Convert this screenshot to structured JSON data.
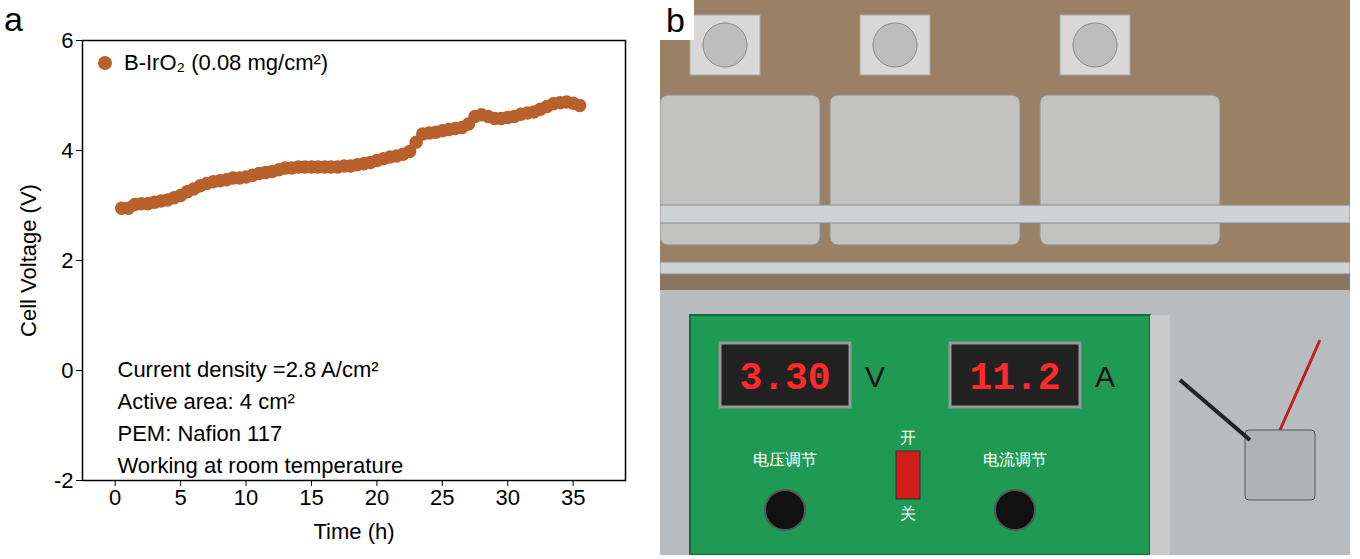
{
  "chart_data": {
    "type": "scatter",
    "panel": "a",
    "x_label": "Time (h)",
    "y_label": "Cell Voltage (V)",
    "annotations": [
      "Current density =2.8 A/cm²",
      "Active area: 4 cm²",
      "PEM: Nafion 117",
      "Working at room temperature"
    ],
    "x": [
      0.5,
      1,
      1.5,
      2,
      2.5,
      3,
      3.5,
      4,
      4.5,
      5,
      5.5,
      6,
      6.5,
      7,
      7.5,
      8,
      8.5,
      9,
      9.5,
      10,
      10.5,
      11,
      11.5,
      12,
      12.5,
      13,
      13.5,
      14,
      14.5,
      15,
      15.5,
      16,
      16.5,
      17,
      17.5,
      18,
      18.5,
      19,
      19.5,
      20,
      20.5,
      21,
      21.5,
      22,
      22.5,
      23,
      23.5,
      24,
      24.5,
      25,
      25.5,
      26,
      26.5,
      27,
      27.5,
      28,
      28.5,
      29,
      29.5,
      30,
      30.5,
      31,
      31.5,
      32,
      32.5,
      33,
      33.5,
      34,
      34.5,
      35,
      35.5
    ],
    "series": [
      {
        "name": "B-IrO₂ (0.08 mg/cm²)",
        "color": "#b8612c",
        "marker": "circle",
        "values": [
          2.95,
          2.95,
          3.02,
          3.03,
          3.03,
          3.06,
          3.08,
          3.1,
          3.14,
          3.18,
          3.25,
          3.3,
          3.36,
          3.4,
          3.43,
          3.45,
          3.47,
          3.5,
          3.5,
          3.52,
          3.55,
          3.58,
          3.6,
          3.62,
          3.65,
          3.68,
          3.68,
          3.7,
          3.7,
          3.7,
          3.7,
          3.7,
          3.7,
          3.7,
          3.72,
          3.72,
          3.74,
          3.76,
          3.78,
          3.82,
          3.85,
          3.88,
          3.9,
          3.93,
          3.98,
          4.15,
          4.3,
          4.32,
          4.33,
          4.36,
          4.38,
          4.4,
          4.42,
          4.48,
          4.62,
          4.65,
          4.62,
          4.58,
          4.58,
          4.6,
          4.62,
          4.66,
          4.68,
          4.7,
          4.75,
          4.8,
          4.85,
          4.87,
          4.88,
          4.86,
          4.82
        ]
      }
    ],
    "xlim": [
      -2.5,
      39
    ],
    "xticks": [
      0,
      5,
      10,
      15,
      20,
      25,
      30,
      35
    ],
    "ylim": [
      -2,
      6
    ],
    "yticks": [
      -2,
      0,
      2,
      4,
      6
    ],
    "grid": false,
    "legend": "top-left"
  },
  "photo": {
    "panel": "b",
    "voltage_display": "3.30",
    "voltage_unit": "V",
    "current_display": "11.2",
    "current_unit": "A",
    "switch_on": "开",
    "switch_off": "关",
    "voltage_knob": "电压调节",
    "current_knob": "电流调节"
  }
}
